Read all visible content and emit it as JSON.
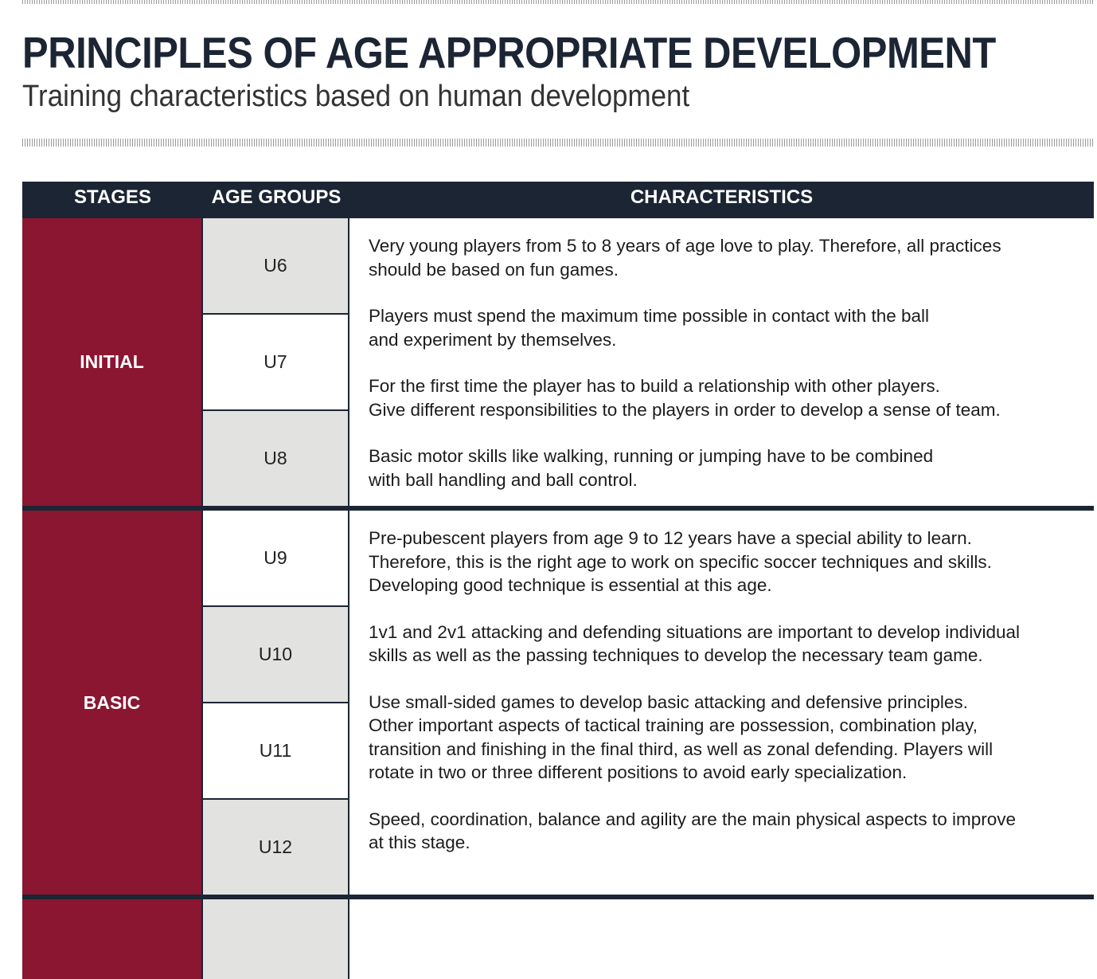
{
  "header": {
    "title": "PRINCIPLES OF AGE APPROPRIATE DEVELOPMENT",
    "subtitle": "Training characteristics based on human development"
  },
  "table": {
    "columns": [
      "STAGES",
      "AGE GROUPS",
      "CHARACTERISTICS"
    ],
    "stages": [
      {
        "name": "INITIAL",
        "age_groups": [
          "U6",
          "U7",
          "U8"
        ],
        "characteristics": [
          "Very young players from 5 to 8 years of age love to play. Therefore, all practices\nshould be based on fun games.",
          "Players must spend the maximum time possible in contact with the ball\nand experiment by themselves.",
          "For the first time the player has to build a relationship with other players.\nGive different responsibilities to the players in order to develop a sense of team.",
          "Basic motor skills like walking, running or jumping have to be combined\nwith ball handling and ball control."
        ]
      },
      {
        "name": "BASIC",
        "age_groups": [
          "U9",
          "U10",
          "U11",
          "U12"
        ],
        "characteristics": [
          "Pre-pubescent players from age 9 to 12 years have a special ability to learn.\nTherefore, this is the right age to work on specific soccer techniques and skills.\nDeveloping good technique is essential at this age.",
          "1v1 and 2v1 attacking and defending situations are important to develop individual\nskills as well as the passing techniques to develop the necessary team game.",
          "Use small-sided games to develop basic attacking and defensive principles.\nOther important aspects of tactical training are possession, combination play,\ntransition and finishing in the final third, as well as zonal defending. Players will\nrotate in two or three different positions to avoid early specialization.",
          "Speed, coordination, balance and agility are the main physical aspects to improve\nat this stage."
        ]
      }
    ]
  },
  "colors": {
    "header_bg": "#1b2534",
    "stage_bg": "#8a1632",
    "age_grey_bg": "#e2e2e0"
  }
}
